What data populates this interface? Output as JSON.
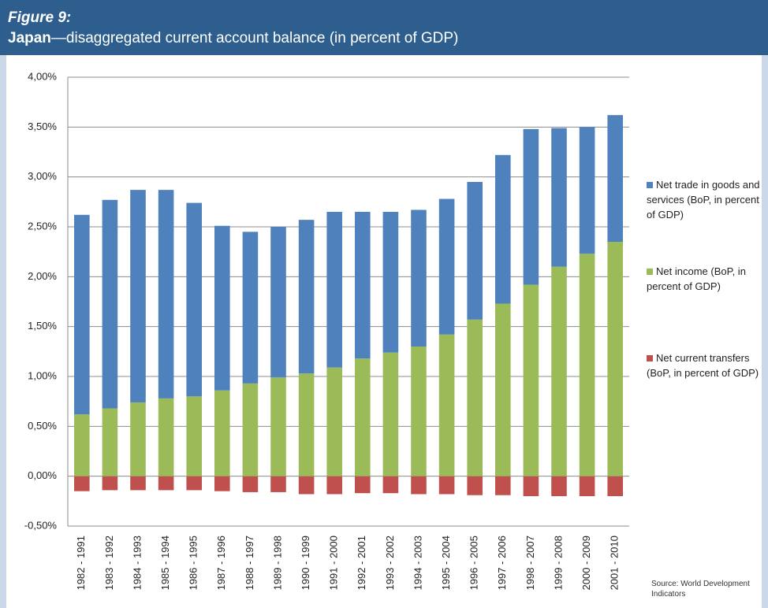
{
  "chart_data": {
    "type": "bar",
    "stacked": true,
    "title": "Figure 9:",
    "subtitle_country": "Japan",
    "subtitle": "—disaggregated current account balance (in percent of GDP)",
    "source": "Source: World Development Indicators",
    "categories": [
      "1982 - 1991",
      "1983 - 1992",
      "1984 - 1993",
      "1985 - 1994",
      "1986 - 1995",
      "1987 - 1996",
      "1988 - 1997",
      "1989 - 1998",
      "1990 - 1999",
      "1991 - 2000",
      "1992 - 2001",
      "1993 - 2002",
      "1994 - 2003",
      "1995 - 2004",
      "1996 - 2005",
      "1997 - 2006",
      "1998 - 2007",
      "1999 - 2008",
      "2000 - 2009",
      "2001 - 2010"
    ],
    "series": [
      {
        "name": "Net current transfers (BoP, in percent of GDP)",
        "color": "#c0504d",
        "values": [
          -0.15,
          -0.14,
          -0.14,
          -0.14,
          -0.14,
          -0.15,
          -0.16,
          -0.16,
          -0.18,
          -0.18,
          -0.17,
          -0.17,
          -0.18,
          -0.18,
          -0.19,
          -0.19,
          -0.2,
          -0.2,
          -0.2,
          -0.2
        ]
      },
      {
        "name": "Net income (BoP, in percent of GDP)",
        "color": "#9bbb59",
        "values": [
          0.62,
          0.68,
          0.74,
          0.78,
          0.8,
          0.86,
          0.93,
          0.99,
          1.03,
          1.09,
          1.18,
          1.24,
          1.3,
          1.42,
          1.57,
          1.73,
          1.92,
          2.1,
          2.23,
          2.35
        ]
      },
      {
        "name": "Net trade in goods and services (BoP, in percent of GDP)",
        "color": "#4f81bd",
        "values": [
          2.0,
          2.09,
          2.13,
          2.09,
          1.94,
          1.65,
          1.52,
          1.51,
          1.54,
          1.56,
          1.47,
          1.41,
          1.37,
          1.36,
          1.38,
          1.49,
          1.56,
          1.39,
          1.27,
          1.27
        ]
      }
    ],
    "ylim": [
      -0.5,
      4
    ],
    "yticks": [
      {
        "value": -0.5,
        "label": "-0,50%"
      },
      {
        "value": 0,
        "label": "0,00%"
      },
      {
        "value": 0.5,
        "label": "0,50%"
      },
      {
        "value": 1,
        "label": "1,00%"
      },
      {
        "value": 1.5,
        "label": "1,50%"
      },
      {
        "value": 2,
        "label": "2,00%"
      },
      {
        "value": 2.5,
        "label": "2,50%"
      },
      {
        "value": 3,
        "label": "3,00%"
      },
      {
        "value": 3.5,
        "label": "3,50%"
      },
      {
        "value": 4,
        "label": "4,00%"
      }
    ],
    "grid": true,
    "legend": "right"
  }
}
